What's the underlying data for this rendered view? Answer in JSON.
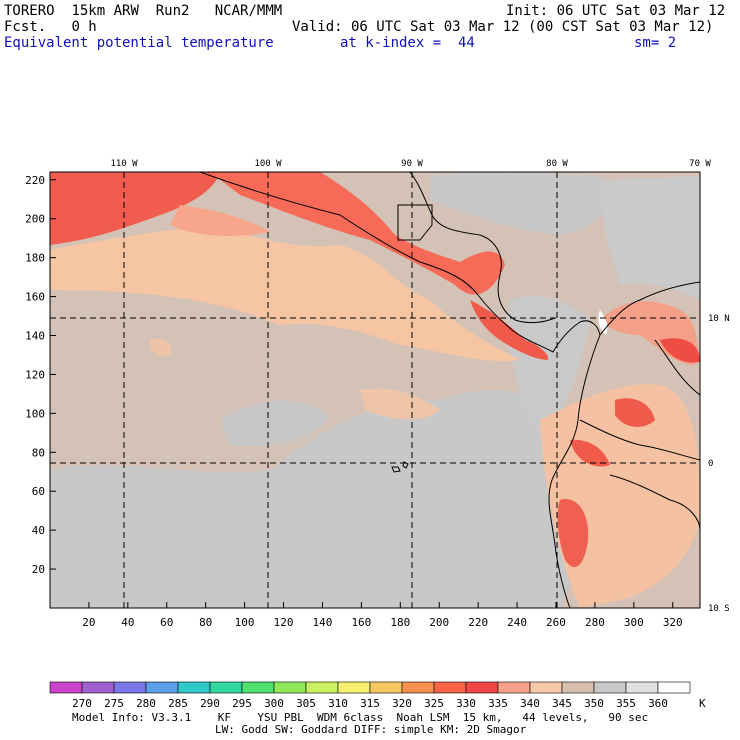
{
  "header": {
    "model": "TORERO",
    "resolution": "15km ARW",
    "run": "Run2",
    "org": "NCAR/MMM",
    "init": "Init: 06 UTC Sat 03 Mar 12",
    "fcst_label": "Fcst.",
    "fcst_value": "0 h",
    "valid": "Valid: 06 UTC Sat 03 Mar 12 (00 CST Sat 03 Mar 12)",
    "field": "Equivalent potential temperature",
    "level": "at k-index =  44",
    "smooth": "sm= 2"
  },
  "map": {
    "lon_labels": [
      "110 W",
      "100 W",
      "90 W",
      "80 W",
      "70 W"
    ],
    "lat_labels": [
      "10 N",
      "0",
      "10 S"
    ],
    "x_ticks": [
      "20",
      "40",
      "60",
      "80",
      "100",
      "120",
      "140",
      "160",
      "180",
      "200",
      "220",
      "240",
      "260",
      "280",
      "300",
      "320"
    ],
    "y_ticks": [
      "220",
      "200",
      "180",
      "160",
      "140",
      "120",
      "100",
      "80",
      "60",
      "40",
      "20"
    ]
  },
  "colorbar": {
    "levels": [
      "270",
      "275",
      "280",
      "285",
      "290",
      "295",
      "300",
      "305",
      "310",
      "315",
      "320",
      "325",
      "330",
      "335",
      "340",
      "345",
      "350",
      "355",
      "360"
    ],
    "unit": "K",
    "colors": [
      "#cc44cc",
      "#a060d0",
      "#7878e8",
      "#5aa0e8",
      "#30c8c8",
      "#30d8a0",
      "#50e070",
      "#90e858",
      "#c8f060",
      "#f8f070",
      "#f8c860",
      "#f89050",
      "#f86448",
      "#f04848",
      "#f8a088",
      "#f8c8a8",
      "#d8c0b0",
      "#c8c8c8",
      "#e0e0e0",
      "#ffffff"
    ]
  },
  "footer": {
    "line1": "Model Info: V3.3.1    KF    YSU PBL  WDM 6class  Noah LSM  15 km,   44 levels,   90 sec",
    "line2": "LW: Godd SW: Goddard DIFF: simple KM: 2D Smagor"
  }
}
